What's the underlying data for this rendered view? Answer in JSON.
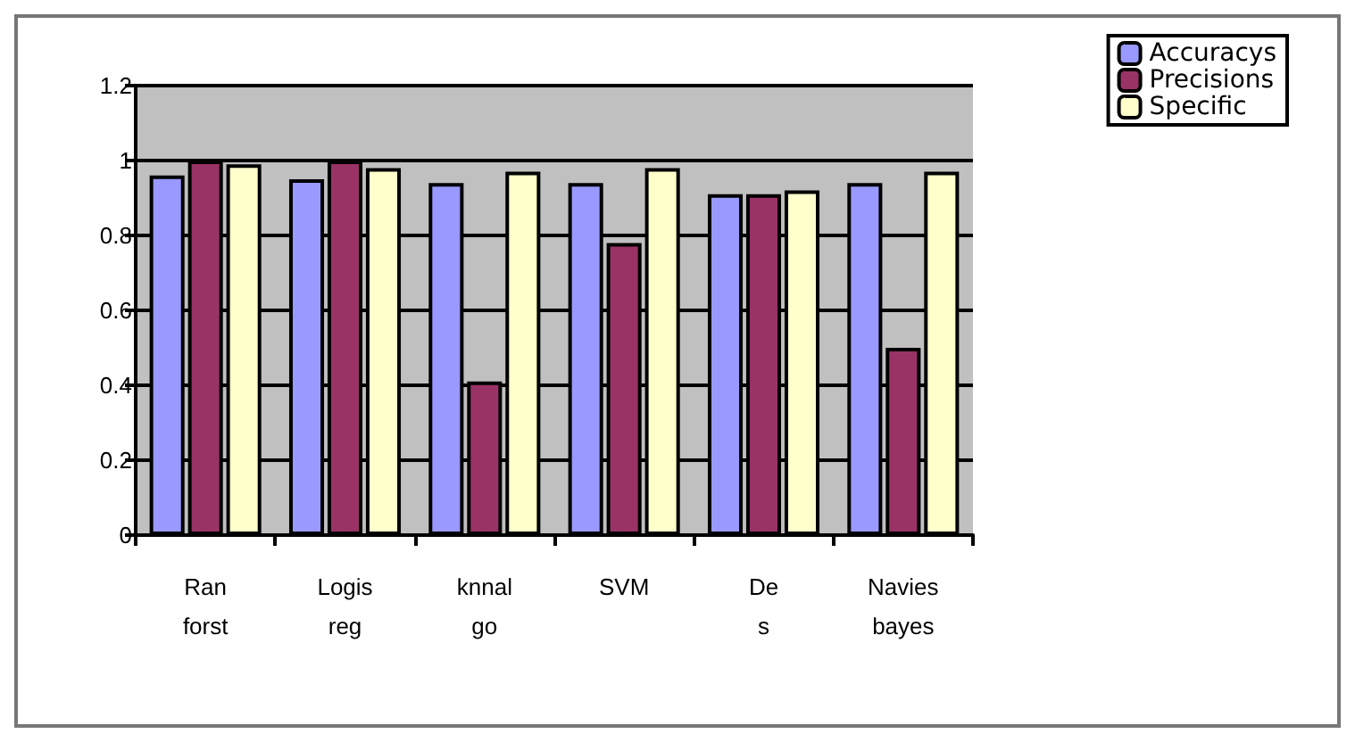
{
  "chart_data": {
    "type": "bar",
    "categories": [
      "Ran forst",
      "Logis reg",
      "knnal go",
      "SVM",
      "De s",
      "Navies bayes"
    ],
    "series": [
      {
        "name": "Accuracys",
        "color": "#9999ff",
        "values": [
          0.96,
          0.95,
          0.94,
          0.94,
          0.91,
          0.94
        ]
      },
      {
        "name": "Precisions",
        "color": "#993366",
        "values": [
          1.0,
          1.0,
          0.41,
          0.78,
          0.91,
          0.5
        ]
      },
      {
        "name": "Specific",
        "color": "#ffffcc",
        "values": [
          0.99,
          0.98,
          0.97,
          0.98,
          0.92,
          0.97
        ]
      }
    ],
    "ylim": [
      0,
      1.2
    ],
    "yticks": [
      0,
      0.2,
      0.4,
      0.6,
      0.8,
      1,
      1.2
    ],
    "grid": "y",
    "legend": "top right"
  }
}
